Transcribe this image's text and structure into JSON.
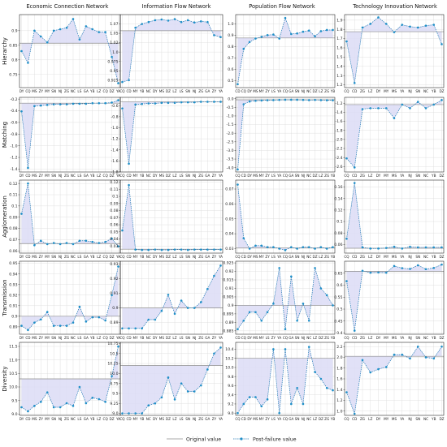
{
  "figure": {
    "columns": [
      "Economic Connection Network",
      "Information Flow Network",
      "Population Flow Network",
      "Technology Innovation Network"
    ],
    "rows": [
      "Hierarchy",
      "Matching",
      "Agglomeration",
      "Transmission",
      "Diversity"
    ],
    "legend": {
      "original": "Original value",
      "post": "Post-failure value"
    },
    "colors": {
      "line": "#1f77b4",
      "point": "#1f8fc8",
      "baseline": "#8c8c8c",
      "fill": "#dcdcf6"
    }
  },
  "chart_data": [
    {
      "type": "line",
      "row": "Hierarchy",
      "column": "Economic Connection Network",
      "categories": [
        "DY",
        "CQ",
        "MS",
        "ZY",
        "MY",
        "SN",
        "NJ",
        "ZG",
        "NC",
        "LS",
        "GA",
        "YB",
        "LZ",
        "CQ",
        "DZ",
        "YA"
      ],
      "original": 0.857,
      "values": [
        0.83,
        0.79,
        0.9,
        0.88,
        0.86,
        0.9,
        0.905,
        0.91,
        0.94,
        0.87,
        0.915,
        0.905,
        0.895,
        0.895,
        0.81,
        0.72
      ],
      "ylim": [
        0.705,
        0.955
      ],
      "yticks": [
        0.75,
        0.8,
        0.85,
        0.9
      ]
    },
    {
      "type": "line",
      "row": "Hierarchy",
      "column": "Information Flow Network",
      "categories": [
        "CQ",
        "CD",
        "MY",
        "YB",
        "NC",
        "DY",
        "MS",
        "DZ",
        "LZ",
        "LS",
        "SN",
        "NJ",
        "ZG",
        "GA",
        "ZY",
        "YA"
      ],
      "original": 1.057,
      "values": [
        0.92,
        0.925,
        1.065,
        1.075,
        1.08,
        1.085,
        1.087,
        1.084,
        1.088,
        1.08,
        1.085,
        1.079,
        1.082,
        1.08,
        1.045,
        1.04
      ],
      "ylim": [
        0.905,
        1.1
      ],
      "yticks": [
        0.925,
        0.95,
        0.975,
        1.0,
        1.025,
        1.05,
        1.075
      ]
    },
    {
      "type": "line",
      "row": "Hierarchy",
      "column": "Population Flow Network",
      "categories": [
        "CD",
        "CQ",
        "DY",
        "MS",
        "MY",
        "ZY",
        "LS",
        "YA",
        "CQ",
        "GA",
        "SN",
        "NJ",
        "NC",
        "DZ",
        "LZ",
        "ZG",
        "YB"
      ],
      "original": 0.875,
      "values": [
        0.47,
        0.78,
        0.84,
        0.87,
        0.885,
        0.9,
        0.905,
        0.87,
        1.05,
        0.91,
        0.915,
        0.93,
        0.94,
        0.89,
        0.935,
        0.945,
        0.945
      ],
      "ylim": [
        0.44,
        1.08
      ],
      "yticks": [
        0.5,
        0.6,
        0.7,
        0.8,
        0.9,
        1.0
      ]
    },
    {
      "type": "line",
      "row": "Hierarchy",
      "column": "Technology Innovation Network",
      "categories": [
        "CQ",
        "CD",
        "ZG",
        "LZ",
        "DY",
        "MY",
        "MS",
        "YA",
        "NJ",
        "SN",
        "NC",
        "YB",
        "DZ"
      ],
      "original": 1.775,
      "values": [
        1.67,
        1.22,
        1.82,
        1.86,
        1.93,
        1.86,
        1.77,
        1.85,
        1.83,
        1.82,
        1.84,
        1.85,
        1.64
      ],
      "ylim": [
        1.17,
        1.96
      ],
      "yticks": [
        1.2,
        1.3,
        1.4,
        1.5,
        1.6,
        1.7,
        1.8,
        1.9
      ]
    },
    {
      "type": "line",
      "row": "Matching",
      "column": "Economic Connection Network",
      "categories": [
        "DY",
        "CD",
        "MS",
        "ZY",
        "MY",
        "SN",
        "NJ",
        "ZG",
        "NC",
        "LS",
        "GA",
        "YB",
        "LZ",
        "CQ",
        "DZ",
        "YA"
      ],
      "original": -0.27,
      "values": [
        -0.41,
        -1.38,
        -0.32,
        -0.31,
        -0.3,
        -0.29,
        -0.29,
        -0.29,
        -0.28,
        -0.28,
        -0.28,
        -0.27,
        -0.27,
        -0.27,
        -0.26,
        -0.22
      ],
      "ylim": [
        -1.45,
        -0.17
      ],
      "yticks": [
        -1.4,
        -1.2,
        -1.0,
        -0.8,
        -0.6,
        -0.4,
        -0.2
      ]
    },
    {
      "type": "line",
      "row": "Matching",
      "column": "Information Flow Network",
      "categories": [
        "CQ",
        "CD",
        "MY",
        "YB",
        "NC",
        "DY",
        "MS",
        "DZ",
        "LZ",
        "LS",
        "SN",
        "NJ",
        "ZG",
        "GA",
        "ZY",
        "YA"
      ],
      "original": -0.53,
      "values": [
        -0.65,
        -1.65,
        -0.58,
        -0.57,
        -0.56,
        -0.56,
        -0.55,
        -0.55,
        -0.55,
        -0.54,
        -0.54,
        -0.54,
        -0.53,
        -0.53,
        -0.53,
        -0.53
      ],
      "ylim": [
        -1.8,
        -0.45
      ],
      "yticks": [
        -1.8,
        -1.6,
        -1.4,
        -1.2,
        -1.0,
        -0.8,
        -0.6
      ]
    },
    {
      "type": "line",
      "row": "Matching",
      "column": "Population Flow Network",
      "categories": [
        "CQ",
        "CD",
        "DY",
        "MS",
        "MY",
        "ZY",
        "LS",
        "YA",
        "CQ",
        "GA",
        "SN",
        "NJ",
        "NC",
        "DZ",
        "LZ",
        "ZG",
        "YB"
      ],
      "original": -0.06,
      "values": [
        -4.1,
        -0.32,
        -0.16,
        -0.12,
        -0.1,
        -0.09,
        -0.08,
        -0.07,
        -0.06,
        -0.06,
        -0.06,
        -0.07,
        -0.08,
        -0.07,
        -0.08,
        -0.09,
        -0.09
      ],
      "ylim": [
        -4.25,
        0.08
      ],
      "yticks": [
        -4.0,
        -3.5,
        -3.0,
        -2.5,
        -2.0,
        -1.5,
        -1.0,
        -0.5,
        0.0
      ]
    },
    {
      "type": "line",
      "row": "Matching",
      "column": "Technology Innovation Network",
      "categories": [
        "CQ",
        "CD",
        "ZG",
        "LZ",
        "DY",
        "MY",
        "MS",
        "YA",
        "NJ",
        "SN",
        "NC",
        "YB",
        "DZ"
      ],
      "original": -1.23,
      "values": [
        -2.42,
        -2.62,
        -1.33,
        -1.31,
        -1.31,
        -1.31,
        -1.53,
        -1.23,
        -1.31,
        -1.17,
        -1.31,
        -1.23,
        -1.13
      ],
      "ylim": [
        -2.72,
        -1.07
      ],
      "yticks": [
        -2.6,
        -2.4,
        -2.2,
        -2.0,
        -1.8,
        -1.6,
        -1.4,
        -1.2
      ]
    },
    {
      "type": "line",
      "row": "Agglomeration",
      "column": "Economic Connection Network",
      "categories": [
        "DY",
        "CD",
        "MS",
        "ZY",
        "MY",
        "SN",
        "NJ",
        "ZG",
        "NC",
        "LS",
        "GA",
        "YB",
        "LZ",
        "CQ",
        "DZ",
        "YA"
      ],
      "original": 0.0665,
      "values": [
        0.093,
        0.12,
        0.065,
        0.069,
        0.066,
        0.067,
        0.066,
        0.067,
        0.066,
        0.069,
        0.069,
        0.068,
        0.067,
        0.068,
        0.071,
        0.064
      ],
      "ylim": [
        0.058,
        0.123
      ],
      "yticks": [
        0.06,
        0.07,
        0.08,
        0.09,
        0.1,
        0.11,
        0.12
      ]
    },
    {
      "type": "line",
      "row": "Agglomeration",
      "column": "Information Flow Network",
      "categories": [
        "CQ",
        "CD",
        "MY",
        "YB",
        "NC",
        "DY",
        "MS",
        "DZ",
        "LZ",
        "LS",
        "SN",
        "NJ",
        "ZG",
        "GA",
        "ZY",
        "YA"
      ],
      "original": 0.0255,
      "values": [
        0.052,
        0.116,
        0.025,
        0.0245,
        0.0245,
        0.025,
        0.0245,
        0.0245,
        0.025,
        0.025,
        0.0245,
        0.025,
        0.025,
        0.025,
        0.025,
        0.025
      ],
      "ylim": [
        0.02,
        0.123
      ],
      "yticks": [
        0.03,
        0.04,
        0.05,
        0.06,
        0.07,
        0.08,
        0.09,
        0.1,
        0.11,
        0.12
      ]
    },
    {
      "type": "line",
      "row": "Agglomeration",
      "column": "Population Flow Network",
      "categories": [
        "CQ",
        "CD",
        "DY",
        "MS",
        "MY",
        "ZY",
        "LS",
        "YA",
        "CQ",
        "GA",
        "SN",
        "NJ",
        "NC",
        "DZ",
        "LZ",
        "ZG",
        "YB"
      ],
      "original": 0.0305,
      "values": [
        0.073,
        0.037,
        0.03,
        0.032,
        0.032,
        0.031,
        0.031,
        0.03,
        0.029,
        0.031,
        0.03,
        0.031,
        0.031,
        0.03,
        0.031,
        0.03,
        0.031
      ],
      "ylim": [
        0.027,
        0.076
      ],
      "yticks": [
        0.03,
        0.04,
        0.05,
        0.06,
        0.07
      ]
    },
    {
      "type": "line",
      "row": "Agglomeration",
      "column": "Technology Innovation Network",
      "categories": [
        "CQ",
        "CD",
        "ZG",
        "LZ",
        "DY",
        "MY",
        "MS",
        "YA",
        "NJ",
        "SN",
        "NC",
        "YB",
        "DZ"
      ],
      "original": 0.0535,
      "values": [
        0.07,
        0.167,
        0.055,
        0.053,
        0.053,
        0.054,
        0.056,
        0.053,
        0.056,
        0.055,
        0.055,
        0.055,
        0.055
      ],
      "ylim": [
        0.045,
        0.172
      ],
      "yticks": [
        0.06,
        0.08,
        0.1,
        0.12,
        0.14,
        0.16
      ]
    },
    {
      "type": "line",
      "row": "Transmission",
      "column": "Economic Connection Network",
      "categories": [
        "DY",
        "CD",
        "MS",
        "ZY",
        "MY",
        "SN",
        "NJ",
        "ZG",
        "NC",
        "LS",
        "GA",
        "YB",
        "LZ",
        "CQ",
        "DZ",
        "YA"
      ],
      "original": 0.9,
      "values": [
        0.891,
        0.887,
        0.894,
        0.897,
        0.904,
        0.891,
        0.891,
        0.891,
        0.894,
        0.909,
        0.895,
        0.899,
        0.899,
        0.896,
        0.92,
        0.947
      ],
      "ylim": [
        0.883,
        0.952
      ],
      "yticks": [
        0.89,
        0.9,
        0.91,
        0.92,
        0.93,
        0.94,
        0.95
      ]
    },
    {
      "type": "line",
      "row": "Transmission",
      "column": "Information Flow Network",
      "categories": [
        "CQ",
        "CD",
        "MY",
        "YB",
        "NC",
        "DY",
        "MS",
        "DZ",
        "LZ",
        "LS",
        "SN",
        "NJ",
        "ZG",
        "GA",
        "ZY",
        "YA"
      ],
      "original": 0.9,
      "values": [
        0.886,
        0.886,
        0.886,
        0.886,
        0.892,
        0.892,
        0.898,
        0.909,
        0.896,
        0.905,
        0.9,
        0.9,
        0.904,
        0.913,
        0.922,
        0.929
      ],
      "ylim": [
        0.882,
        0.932
      ],
      "yticks": [
        0.89,
        0.9,
        0.91,
        0.92,
        0.93
      ]
    },
    {
      "type": "line",
      "row": "Transmission",
      "column": "Population Flow Network",
      "categories": [
        "CD",
        "CQ",
        "DY",
        "MS",
        "MY",
        "LS",
        "ZY",
        "YA",
        "CQ",
        "GA",
        "SN",
        "NJ",
        "NC",
        "LZ",
        "DZ",
        "ZG",
        "YB"
      ],
      "original": 0.9,
      "values": [
        0.886,
        0.891,
        0.896,
        0.896,
        0.891,
        0.896,
        0.901,
        0.922,
        0.886,
        0.917,
        0.891,
        0.901,
        0.891,
        0.922,
        0.91,
        0.906,
        0.9
      ],
      "ylim": [
        0.883,
        0.926
      ],
      "yticks": [
        0.885,
        0.89,
        0.895,
        0.9,
        0.905,
        0.91,
        0.915,
        0.92,
        0.925
      ]
    },
    {
      "type": "line",
      "row": "Transmission",
      "column": "Technology Innovation Network",
      "categories": [
        "CQ",
        "CD",
        "ZG",
        "LZ",
        "DY",
        "MY",
        "MS",
        "YA",
        "NJ",
        "SN",
        "NC",
        "YB",
        "DZ"
      ],
      "original": 0.658,
      "values": [
        0.617,
        0.41,
        0.66,
        0.652,
        0.653,
        0.652,
        0.68,
        0.671,
        0.668,
        0.683,
        0.667,
        0.672,
        0.686
      ],
      "ylim": [
        0.395,
        0.7
      ],
      "yticks": [
        0.4,
        0.45,
        0.5,
        0.55,
        0.6,
        0.65
      ]
    },
    {
      "type": "line",
      "row": "Diversity",
      "column": "Economic Connection Network",
      "categories": [
        "DY",
        "CD",
        "MS",
        "ZY",
        "MY",
        "SN",
        "NJ",
        "ZG",
        "NC",
        "LS",
        "GA",
        "YB",
        "LZ",
        "CQ",
        "DZ",
        "YA"
      ],
      "original": 10.3,
      "values": [
        9.25,
        9.1,
        9.3,
        9.45,
        9.8,
        9.25,
        9.25,
        9.4,
        9.3,
        10.0,
        9.4,
        9.6,
        9.55,
        9.45,
        10.4,
        11.5
      ],
      "ylim": [
        8.95,
        11.65
      ],
      "yticks": [
        9.0,
        9.5,
        10.0,
        10.5,
        11.0,
        11.5
      ]
    },
    {
      "type": "line",
      "row": "Diversity",
      "column": "Information Flow Network",
      "categories": [
        "CQ",
        "CD",
        "MY",
        "YB",
        "NC",
        "DY",
        "MS",
        "DZ",
        "LZ",
        "LS",
        "SN",
        "NJ",
        "ZG",
        "GA",
        "ZY",
        "YA"
      ],
      "original": 10.2,
      "values": [
        9.0,
        9.0,
        9.0,
        9.0,
        9.2,
        9.25,
        9.4,
        9.9,
        9.35,
        9.75,
        9.55,
        9.55,
        9.7,
        10.1,
        10.5,
        10.65
      ],
      "ylim": [
        8.95,
        10.78
      ],
      "yticks": [
        9.0,
        9.25,
        9.5,
        9.75,
        10.0,
        10.25,
        10.5,
        10.75
      ]
    },
    {
      "type": "line",
      "row": "Diversity",
      "column": "Population Flow Network",
      "categories": [
        "CQ",
        "CD",
        "DY",
        "MS",
        "MY",
        "ZY",
        "LS",
        "YA",
        "CQ",
        "GA",
        "SN",
        "NJ",
        "NC",
        "LZ",
        "DZ",
        "ZG",
        "YB"
      ],
      "original": 10.2,
      "values": [
        9.0,
        9.2,
        9.35,
        9.35,
        9.15,
        9.3,
        10.4,
        9.0,
        10.4,
        9.2,
        9.55,
        9.2,
        10.45,
        9.9,
        9.75,
        9.55,
        9.5
      ],
      "ylim": [
        8.95,
        10.55
      ],
      "yticks": [
        9.0,
        9.2,
        9.4,
        9.6,
        9.8,
        10.0,
        10.2,
        10.4
      ]
    },
    {
      "type": "line",
      "row": "Diversity",
      "column": "Technology Innovation Network",
      "categories": [
        "CQ",
        "CD",
        "ZG",
        "LZ",
        "DY",
        "MY",
        "MS",
        "YA",
        "NJ",
        "SN",
        "NC",
        "YB",
        "DZ"
      ],
      "original": 2.02,
      "values": [
        1.35,
        0.95,
        1.95,
        1.72,
        1.78,
        1.82,
        2.05,
        2.05,
        1.98,
        2.2,
        2.0,
        1.98,
        2.2
      ],
      "ylim": [
        0.92,
        2.28
      ],
      "yticks": [
        1.0,
        1.2,
        1.4,
        1.6,
        1.8,
        2.0,
        2.2
      ]
    }
  ]
}
